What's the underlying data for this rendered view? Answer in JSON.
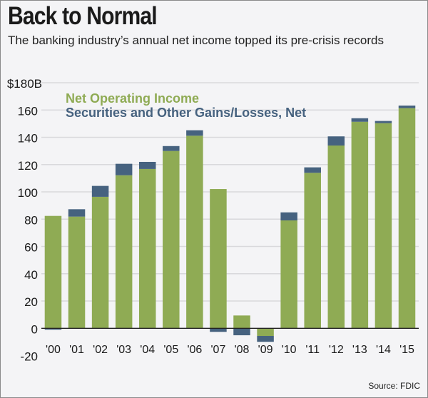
{
  "chart_data": {
    "type": "bar",
    "stacked": true,
    "title": "Back to Normal",
    "subtitle": "The banking industry’s annual net income topped its pre-crisis records",
    "categories": [
      "'00",
      "'01",
      "'02",
      "'03",
      "'04",
      "'05",
      "'06",
      "'07",
      "'08",
      "'09",
      "'10",
      "'11",
      "'12",
      "'13",
      "'14",
      "'15"
    ],
    "series": [
      {
        "name": "Net Operating Income",
        "color": "#8fab54",
        "values": [
          82.4,
          81.9,
          96.4,
          112.2,
          116.8,
          130.0,
          141.2,
          102.1,
          9.4,
          -5.6,
          79.1,
          114.0,
          134.0,
          151.4,
          150.4,
          161.4
        ]
      },
      {
        "name": "Securities and Other Gains/Losses, Net",
        "color": "#46627f",
        "values": [
          -1.0,
          5.4,
          8.0,
          8.4,
          5.2,
          3.6,
          4.0,
          -2.6,
          -5.1,
          -4.3,
          5.9,
          4.0,
          6.7,
          2.6,
          1.6,
          1.9
        ]
      }
    ],
    "yticks": [
      "$180B",
      "160",
      "140",
      "120",
      "100",
      "80",
      "60",
      "40",
      "20",
      "0",
      "-20"
    ],
    "ytick_values": [
      180,
      160,
      140,
      120,
      100,
      80,
      60,
      40,
      20,
      0,
      -20
    ],
    "ylim": [
      -20,
      180
    ],
    "grid": true,
    "legend_placement": "top-left",
    "source": "Source: FDIC"
  }
}
